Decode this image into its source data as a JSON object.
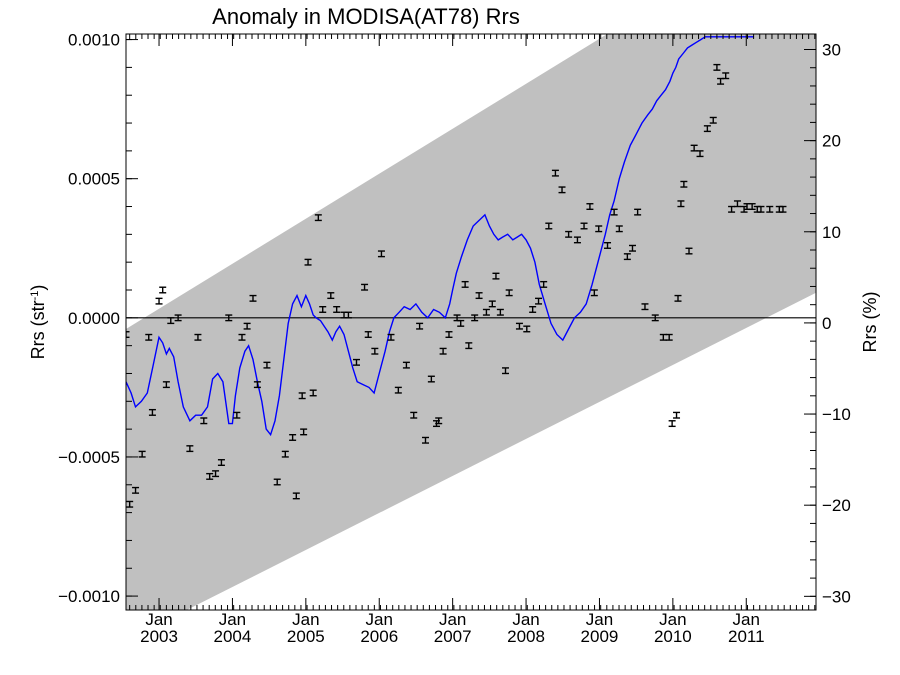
{
  "chart_data": {
    "type": "scatter",
    "title": "Anomaly in MODISA(AT78) Rrs",
    "ylabel_left": "Rrs (str",
    "ylabel_left_superscript": "-1",
    "ylabel_left_close": ")",
    "ylabel_right": "Rrs (%)",
    "x_range": [
      2002.55,
      2011.95
    ],
    "y_left_range": [
      -0.00105,
      0.00102
    ],
    "y_right_range": [
      -31.5,
      31.7
    ],
    "y_left_ticks": [
      {
        "value": 0.001,
        "label": "0.0010"
      },
      {
        "value": 0.0005,
        "label": "0.0005"
      },
      {
        "value": 0.0,
        "label": "0.0000"
      },
      {
        "value": -0.0005,
        "label": "−0.0005"
      },
      {
        "value": -0.001,
        "label": "−0.0010"
      }
    ],
    "y_right_ticks": [
      {
        "value": 30,
        "label": "30"
      },
      {
        "value": 20,
        "label": "20"
      },
      {
        "value": 10,
        "label": "10"
      },
      {
        "value": 0,
        "label": "0"
      },
      {
        "value": -10,
        "label": "−10"
      },
      {
        "value": -20,
        "label": "−20"
      },
      {
        "value": -30,
        "label": "−30"
      }
    ],
    "x_ticks": [
      {
        "value": 2003.0,
        "month": "Jan",
        "year": "2003"
      },
      {
        "value": 2004.0,
        "month": "Jan",
        "year": "2004"
      },
      {
        "value": 2005.0,
        "month": "Jan",
        "year": "2005"
      },
      {
        "value": 2006.0,
        "month": "Jan",
        "year": "2006"
      },
      {
        "value": 2007.0,
        "month": "Jan",
        "year": "2007"
      },
      {
        "value": 2008.0,
        "month": "Jan",
        "year": "2008"
      },
      {
        "value": 2009.0,
        "month": "Jan",
        "year": "2009"
      },
      {
        "value": 2010.0,
        "month": "Jan",
        "year": "2010"
      },
      {
        "value": 2011.0,
        "month": "Jan",
        "year": "2011"
      }
    ],
    "zero_line": 0.0,
    "band": {
      "color": "#c0c0c0",
      "upper": [
        [
          2002.55,
          -4e-05
        ],
        [
          2011.95,
          0.00148
        ]
      ],
      "lower": [
        [
          2002.55,
          -0.00116
        ],
        [
          2011.95,
          9e-05
        ]
      ]
    },
    "series": [
      {
        "kind": "points_with_error_bars",
        "color": "#000000",
        "error": 1e-05,
        "x": [
          2002.55,
          2002.6,
          2002.68,
          2002.77,
          2002.86,
          2002.91,
          2003.0,
          2003.05,
          2003.1,
          2003.16,
          2003.26,
          2003.42,
          2003.53,
          2003.61,
          2003.69,
          2003.77,
          2003.85,
          2003.95,
          2004.06,
          2004.13,
          2004.2,
          2004.28,
          2004.34,
          2004.47,
          2004.61,
          2004.72,
          2004.82,
          2004.87,
          2004.95,
          2004.97,
          2005.03,
          2005.1,
          2005.17,
          2005.23,
          2005.34,
          2005.42,
          2005.52,
          2005.58,
          2005.69,
          2005.8,
          2005.85,
          2005.94,
          2006.03,
          2006.16,
          2006.26,
          2006.37,
          2006.47,
          2006.55,
          2006.63,
          2006.71,
          2006.78,
          2006.81,
          2006.87,
          2006.95,
          2007.06,
          2007.11,
          2007.17,
          2007.22,
          2007.3,
          2007.36,
          2007.46,
          2007.54,
          2007.59,
          2007.65,
          2007.72,
          2007.77,
          2007.91,
          2008.01,
          2008.09,
          2008.17,
          2008.24,
          2008.31,
          2008.4,
          2008.49,
          2008.58,
          2008.7,
          2008.79,
          2008.87,
          2008.93,
          2008.99,
          2009.11,
          2009.2,
          2009.27,
          2009.38,
          2009.45,
          2009.52,
          2009.62,
          2009.76,
          2009.87,
          2009.95,
          2009.99,
          2010.05,
          2010.07,
          2010.11,
          2010.15,
          2010.22,
          2010.29,
          2010.37,
          2010.47,
          2010.55,
          2010.6,
          2010.65,
          2010.72,
          2010.8,
          2010.88,
          2010.97,
          2011.01,
          2011.08,
          2011.15,
          2011.2,
          2011.32,
          2011.45,
          2011.5
        ],
        "y": [
          -6e-05,
          -0.00067,
          -0.00062,
          -0.00049,
          -7e-05,
          -0.00034,
          6e-05,
          0.0001,
          -0.00024,
          -1e-05,
          0.0,
          -0.00047,
          -7e-05,
          -0.00037,
          -0.00057,
          -0.00056,
          -0.00052,
          0.0,
          -0.00035,
          -7e-05,
          -3e-05,
          7e-05,
          -0.00024,
          -0.00017,
          -0.00059,
          -0.00049,
          -0.00043,
          -0.00064,
          -0.00028,
          -0.00041,
          0.0002,
          -0.00027,
          0.00036,
          3e-05,
          8e-05,
          3e-05,
          1e-05,
          1e-05,
          -0.00016,
          0.00011,
          -6e-05,
          -0.00012,
          0.00023,
          -7e-05,
          -0.00026,
          -0.00017,
          -0.00035,
          -3e-05,
          -0.00044,
          -0.00022,
          -0.00038,
          -0.00037,
          -0.00012,
          -6e-05,
          0.0,
          -2e-05,
          0.00012,
          -0.0001,
          0.0,
          8e-05,
          2e-05,
          5e-05,
          0.00015,
          2e-05,
          -0.00019,
          9e-05,
          -3e-05,
          -4e-05,
          3e-05,
          6e-05,
          0.00012,
          0.00033,
          0.00052,
          0.00046,
          0.0003,
          0.00028,
          0.00033,
          0.0004,
          9e-05,
          0.00032,
          0.00026,
          0.00038,
          0.00032,
          0.00022,
          0.00025,
          0.00038,
          4e-05,
          0.0,
          -7e-05,
          -7e-05,
          -0.00038,
          -0.00035,
          7e-05,
          0.00041,
          0.00048,
          0.00024,
          0.00061,
          0.00059,
          0.00068,
          0.00071,
          0.0009,
          0.00085,
          0.00087,
          0.00039,
          0.00041,
          0.00039,
          0.0004,
          0.0004,
          0.00039,
          0.00039,
          0.00039,
          0.00039,
          0.00039
        ],
        "note": "error-bar markers"
      },
      {
        "kind": "line",
        "color": "#0000ff",
        "x": [
          2002.55,
          2002.62,
          2002.68,
          2002.76,
          2002.84,
          2002.92,
          2003.0,
          2003.05,
          2003.1,
          2003.14,
          2003.2,
          2003.26,
          2003.33,
          2003.42,
          2003.5,
          2003.58,
          2003.66,
          2003.73,
          2003.8,
          2003.87,
          2003.95,
          2004.0,
          2004.04,
          2004.1,
          2004.17,
          2004.22,
          2004.28,
          2004.34,
          2004.4,
          2004.46,
          2004.52,
          2004.58,
          2004.64,
          2004.7,
          2004.76,
          2004.82,
          2004.88,
          2004.94,
          2005.0,
          2005.05,
          2005.1,
          2005.14,
          2005.2,
          2005.25,
          2005.3,
          2005.36,
          2005.41,
          2005.46,
          2005.52,
          2005.58,
          2005.64,
          2005.7,
          2005.78,
          2005.86,
          2005.93,
          2006.0,
          2006.08,
          2006.14,
          2006.2,
          2006.27,
          2006.34,
          2006.42,
          2006.5,
          2006.58,
          2006.66,
          2006.74,
          2006.82,
          2006.9,
          2006.96,
          2007.0,
          2007.05,
          2007.12,
          2007.2,
          2007.28,
          2007.36,
          2007.44,
          2007.5,
          2007.56,
          2007.62,
          2007.68,
          2007.75,
          2007.82,
          2007.88,
          2007.94,
          2008.0,
          2008.06,
          2008.12,
          2008.18,
          2008.26,
          2008.34,
          2008.42,
          2008.5,
          2008.58,
          2008.66,
          2008.74,
          2008.82,
          2008.9,
          2008.96,
          2009.02,
          2009.08,
          2009.14,
          2009.2,
          2009.27,
          2009.34,
          2009.42,
          2009.5,
          2009.58,
          2009.66,
          2009.72,
          2009.78,
          2009.84,
          2009.9,
          2009.96,
          2010.0,
          2010.04,
          2010.08,
          2010.14,
          2010.2,
          2010.26,
          2010.32,
          2010.38,
          2010.44,
          2010.5,
          2010.56,
          2010.62,
          2010.68,
          2010.74,
          2010.8,
          2010.86,
          2010.92,
          2010.98,
          2011.04,
          2011.1
        ],
        "y": [
          -0.00023,
          -0.00027,
          -0.00032,
          -0.0003,
          -0.00027,
          -0.00017,
          -7e-05,
          -9e-05,
          -0.00013,
          -0.00011,
          -0.00014,
          -0.00023,
          -0.00032,
          -0.00037,
          -0.00035,
          -0.00035,
          -0.00032,
          -0.00022,
          -0.0002,
          -0.00023,
          -0.00038,
          -0.00038,
          -0.00028,
          -0.00018,
          -0.00012,
          -0.0001,
          -0.00015,
          -0.00023,
          -0.0003,
          -0.0004,
          -0.00042,
          -0.00037,
          -0.00028,
          -0.00015,
          -2e-05,
          5e-05,
          8e-05,
          4e-05,
          8e-05,
          5e-05,
          1e-05,
          0.0,
          -1e-05,
          -3e-05,
          -5e-05,
          -8e-05,
          -5e-05,
          -3e-05,
          -6e-05,
          -0.00012,
          -0.00018,
          -0.00023,
          -0.00024,
          -0.00025,
          -0.00027,
          -0.0002,
          -0.00012,
          -5e-05,
          0.0,
          2e-05,
          4e-05,
          3e-05,
          5e-05,
          2e-05,
          0.0,
          3e-05,
          2e-05,
          0.0,
          5e-05,
          0.0001,
          0.00016,
          0.00022,
          0.00028,
          0.00033,
          0.00035,
          0.00037,
          0.00033,
          0.0003,
          0.00028,
          0.00029,
          0.0003,
          0.00028,
          0.00029,
          0.0003,
          0.00028,
          0.00025,
          0.0002,
          0.00012,
          5e-05,
          -2e-05,
          -6e-05,
          -8e-05,
          -4e-05,
          0.0,
          2e-05,
          5e-05,
          0.00012,
          0.00018,
          0.00024,
          0.0003,
          0.00037,
          0.00042,
          0.0005,
          0.00056,
          0.00062,
          0.00066,
          0.0007,
          0.00073,
          0.00075,
          0.00078,
          0.0008,
          0.00082,
          0.00085,
          0.00088,
          0.0009,
          0.00093,
          0.00095,
          0.00097,
          0.00098,
          0.00099,
          0.001,
          0.00101,
          0.00101,
          0.00101,
          0.00101,
          0.00101,
          0.00101,
          0.00101,
          0.00101,
          0.00101,
          0.00101,
          0.00101,
          0.00101
        ],
        "note": "smoothed line"
      }
    ]
  }
}
